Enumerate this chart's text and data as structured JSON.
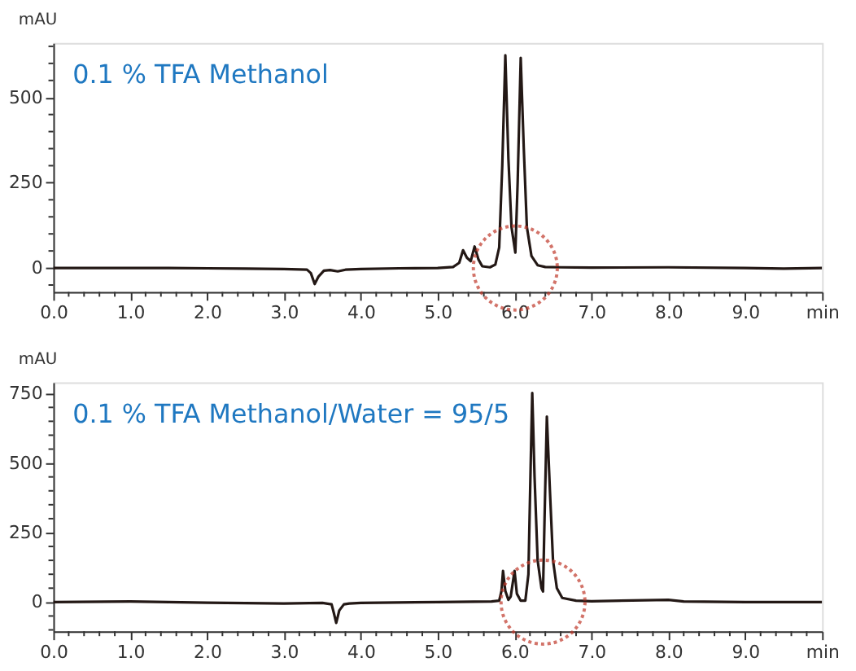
{
  "chart_data": [
    {
      "type": "line",
      "title": "0.1 % TFA Methanol",
      "ylabel": "mAU",
      "xlim": [
        0,
        10
      ],
      "ylim": [
        -70,
        660
      ],
      "xticks": [
        {
          "value": 0,
          "label": "0.0"
        },
        {
          "value": 0.2,
          "label": null
        },
        {
          "value": 0.4,
          "label": null
        },
        {
          "value": 0.6,
          "label": null
        },
        {
          "value": 0.8,
          "label": null
        },
        {
          "value": 1,
          "label": "1.0"
        },
        {
          "value": 1.2,
          "label": null
        },
        {
          "value": 1.4,
          "label": null
        },
        {
          "value": 1.6,
          "label": null
        },
        {
          "value": 1.8,
          "label": null
        },
        {
          "value": 2,
          "label": "2.0"
        },
        {
          "value": 2.2,
          "label": null
        },
        {
          "value": 2.4,
          "label": null
        },
        {
          "value": 2.6,
          "label": null
        },
        {
          "value": 2.8,
          "label": null
        },
        {
          "value": 3,
          "label": "3.0"
        },
        {
          "value": 3.2,
          "label": null
        },
        {
          "value": 3.4,
          "label": null
        },
        {
          "value": 3.6,
          "label": null
        },
        {
          "value": 3.8,
          "label": null
        },
        {
          "value": 4,
          "label": "4.0"
        },
        {
          "value": 4.2,
          "label": null
        },
        {
          "value": 4.4,
          "label": null
        },
        {
          "value": 4.6,
          "label": null
        },
        {
          "value": 4.8,
          "label": null
        },
        {
          "value": 5,
          "label": "5.0"
        },
        {
          "value": 5.2,
          "label": null
        },
        {
          "value": 5.4,
          "label": null
        },
        {
          "value": 5.6,
          "label": null
        },
        {
          "value": 5.8,
          "label": null
        },
        {
          "value": 6,
          "label": "6.0"
        },
        {
          "value": 6.2,
          "label": null
        },
        {
          "value": 6.4,
          "label": null
        },
        {
          "value": 6.6,
          "label": null
        },
        {
          "value": 6.8,
          "label": null
        },
        {
          "value": 7,
          "label": "7.0"
        },
        {
          "value": 7.2,
          "label": null
        },
        {
          "value": 7.4,
          "label": null
        },
        {
          "value": 7.6,
          "label": null
        },
        {
          "value": 7.8,
          "label": null
        },
        {
          "value": 8,
          "label": "8.0"
        },
        {
          "value": 8.2,
          "label": null
        },
        {
          "value": 8.4,
          "label": null
        },
        {
          "value": 8.6,
          "label": null
        },
        {
          "value": 8.8,
          "label": null
        },
        {
          "value": 9,
          "label": "9.0"
        },
        {
          "value": 9.2,
          "label": null
        },
        {
          "value": 9.4,
          "label": null
        },
        {
          "value": 9.6,
          "label": null
        },
        {
          "value": 9.8,
          "label": null
        },
        {
          "value": 10,
          "label": "min"
        }
      ],
      "yticks": [
        {
          "value": -50,
          "label": null
        },
        0,
        {
          "value": 50,
          "label": null
        },
        {
          "value": 100,
          "label": null
        },
        {
          "value": 150,
          "label": null
        },
        {
          "value": 200,
          "label": null
        },
        250,
        {
          "value": 300,
          "label": null
        },
        {
          "value": 350,
          "label": null
        },
        {
          "value": 400,
          "label": null
        },
        {
          "value": 450,
          "label": null
        },
        500,
        {
          "value": 550,
          "label": null
        },
        {
          "value": 600,
          "label": null
        },
        {
          "value": 650,
          "label": null
        }
      ],
      "grid": false,
      "marker": "none",
      "line_style": "solid",
      "series": [
        {
          "color": "#231815",
          "x": [
            0,
            0.9,
            1.5,
            2.5,
            3.0,
            3.3,
            3.35,
            3.4,
            3.45,
            3.52,
            3.6,
            3.7,
            3.8,
            4.0,
            4.5,
            5.0,
            5.2,
            5.28,
            5.33,
            5.38,
            5.43,
            5.48,
            5.53,
            5.58,
            5.68,
            5.75,
            5.8,
            5.84,
            5.88,
            5.92,
            5.96,
            6.01,
            6.04,
            6.08,
            6.12,
            6.16,
            6.22,
            6.3,
            6.4,
            6.6,
            7.0,
            8.0,
            9.0,
            9.5,
            10
          ],
          "values": [
            0,
            0,
            0,
            -2,
            -3,
            -5,
            -15,
            -47,
            -25,
            -8,
            -6,
            -10,
            -5,
            -3,
            -1,
            0,
            3,
            15,
            52,
            30,
            20,
            63,
            25,
            5,
            2,
            10,
            60,
            300,
            624,
            320,
            120,
            45,
            250,
            616,
            350,
            120,
            35,
            8,
            3,
            2,
            1,
            2,
            0,
            -2,
            0
          ]
        }
      ]
    },
    {
      "type": "line",
      "title": "0.1 % TFA Methanol/Water = 95/5",
      "ylabel": "mAU",
      "xlim": [
        0,
        10
      ],
      "ylim": [
        -105,
        790
      ],
      "xticks": [
        {
          "value": 0,
          "label": "0.0"
        },
        {
          "value": 0.2,
          "label": null
        },
        {
          "value": 0.4,
          "label": null
        },
        {
          "value": 0.6,
          "label": null
        },
        {
          "value": 0.8,
          "label": null
        },
        {
          "value": 1,
          "label": "1.0"
        },
        {
          "value": 1.2,
          "label": null
        },
        {
          "value": 1.4,
          "label": null
        },
        {
          "value": 1.6,
          "label": null
        },
        {
          "value": 1.8,
          "label": null
        },
        {
          "value": 2,
          "label": "2.0"
        },
        {
          "value": 2.2,
          "label": null
        },
        {
          "value": 2.4,
          "label": null
        },
        {
          "value": 2.6,
          "label": null
        },
        {
          "value": 2.8,
          "label": null
        },
        {
          "value": 3,
          "label": "3.0"
        },
        {
          "value": 3.2,
          "label": null
        },
        {
          "value": 3.4,
          "label": null
        },
        {
          "value": 3.6,
          "label": null
        },
        {
          "value": 3.8,
          "label": null
        },
        {
          "value": 4,
          "label": "4.0"
        },
        {
          "value": 4.2,
          "label": null
        },
        {
          "value": 4.4,
          "label": null
        },
        {
          "value": 4.6,
          "label": null
        },
        {
          "value": 4.8,
          "label": null
        },
        {
          "value": 5,
          "label": "5.0"
        },
        {
          "value": 5.2,
          "label": null
        },
        {
          "value": 5.4,
          "label": null
        },
        {
          "value": 5.6,
          "label": null
        },
        {
          "value": 5.8,
          "label": null
        },
        {
          "value": 6,
          "label": "6.0"
        },
        {
          "value": 6.2,
          "label": null
        },
        {
          "value": 6.4,
          "label": null
        },
        {
          "value": 6.6,
          "label": null
        },
        {
          "value": 6.8,
          "label": null
        },
        {
          "value": 7,
          "label": "7.0"
        },
        {
          "value": 7.2,
          "label": null
        },
        {
          "value": 7.4,
          "label": null
        },
        {
          "value": 7.6,
          "label": null
        },
        {
          "value": 7.8,
          "label": null
        },
        {
          "value": 8,
          "label": "8.0"
        },
        {
          "value": 8.2,
          "label": null
        },
        {
          "value": 8.4,
          "label": null
        },
        {
          "value": 8.6,
          "label": null
        },
        {
          "value": 8.8,
          "label": null
        },
        {
          "value": 9,
          "label": "9.0"
        },
        {
          "value": 9.2,
          "label": null
        },
        {
          "value": 9.4,
          "label": null
        },
        {
          "value": 9.6,
          "label": null
        },
        {
          "value": 9.8,
          "label": null
        },
        {
          "value": 10,
          "label": "min"
        }
      ],
      "yticks": [
        {
          "value": -100,
          "label": null
        },
        {
          "value": -50,
          "label": null
        },
        0,
        {
          "value": 50,
          "label": null
        },
        {
          "value": 100,
          "label": null
        },
        {
          "value": 150,
          "label": null
        },
        {
          "value": 200,
          "label": null
        },
        250,
        {
          "value": 300,
          "label": null
        },
        {
          "value": 350,
          "label": null
        },
        {
          "value": 400,
          "label": null
        },
        {
          "value": 450,
          "label": null
        },
        500,
        {
          "value": 550,
          "label": null
        },
        {
          "value": 600,
          "label": null
        },
        {
          "value": 650,
          "label": null
        },
        {
          "value": 700,
          "label": null
        },
        750
      ],
      "grid": false,
      "marker": "none",
      "line_style": "solid",
      "series": [
        {
          "color": "#231815",
          "x": [
            0,
            1,
            2,
            3,
            3.5,
            3.62,
            3.65,
            3.68,
            3.72,
            3.78,
            3.85,
            4.0,
            5.0,
            5.7,
            5.8,
            5.83,
            5.85,
            5.88,
            5.92,
            5.95,
            6.0,
            6.03,
            6.08,
            6.14,
            6.18,
            6.21,
            6.23,
            6.26,
            6.3,
            6.35,
            6.37,
            6.39,
            6.42,
            6.46,
            6.5,
            6.55,
            6.62,
            6.8,
            7.0,
            8.0,
            8.2,
            9.0,
            10
          ],
          "values": [
            0,
            2,
            -2,
            -5,
            -3,
            -8,
            -40,
            -75,
            -30,
            -8,
            -5,
            -3,
            0,
            2,
            5,
            40,
            112,
            40,
            8,
            20,
            112,
            30,
            5,
            5,
            100,
            500,
            752,
            450,
            150,
            50,
            38,
            300,
            667,
            400,
            150,
            50,
            15,
            5,
            3,
            8,
            2,
            0,
            0
          ]
        }
      ]
    }
  ]
}
